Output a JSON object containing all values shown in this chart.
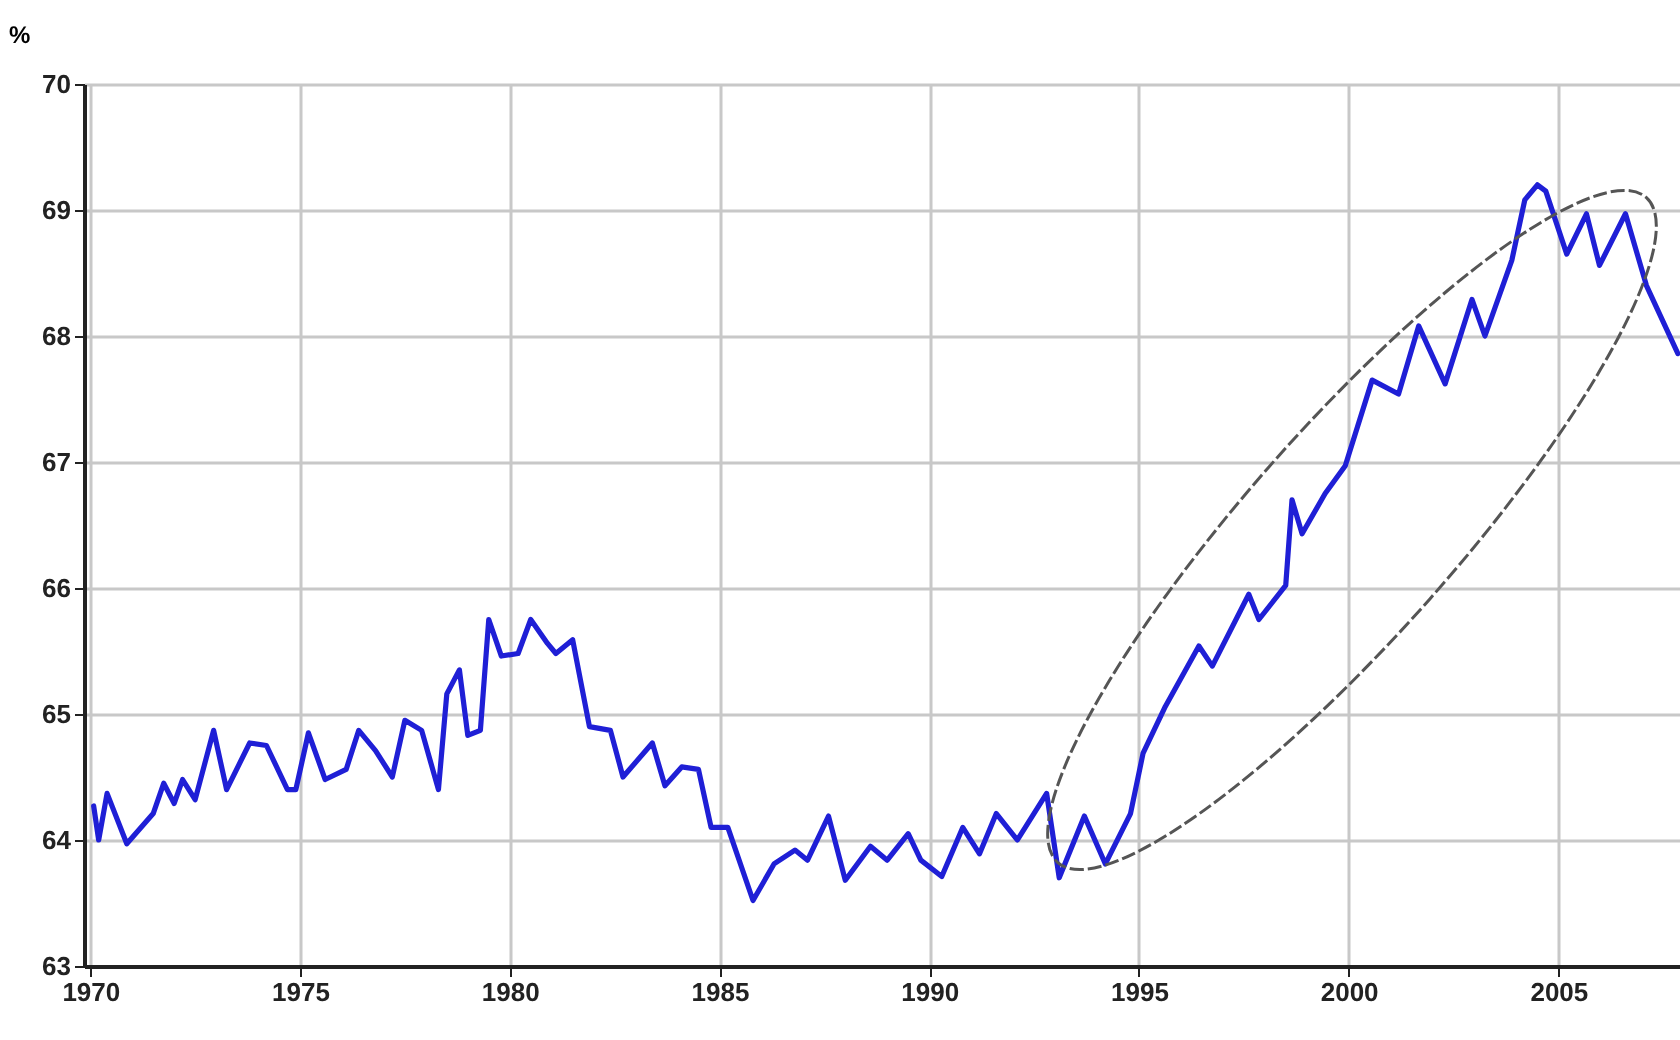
{
  "chart_data": {
    "type": "line",
    "ylabel": "%",
    "xlim": [
      1969.85,
      2007.9
    ],
    "ylim": [
      63,
      70
    ],
    "xticks": [
      1970,
      1975,
      1980,
      1985,
      1990,
      1995,
      2000,
      2005
    ],
    "yticks": [
      63,
      64,
      65,
      66,
      67,
      68,
      69,
      70
    ],
    "grid": true,
    "marker": "none",
    "line_style": "solid",
    "series": [
      {
        "color": "#1f1fd6",
        "x": [
          1970.08,
          1970.2,
          1970.4,
          1970.87,
          1971.5,
          1971.75,
          1972.0,
          1972.2,
          1972.5,
          1972.94,
          1973.25,
          1973.8,
          1974.2,
          1974.7,
          1974.9,
          1975.2,
          1975.6,
          1976.1,
          1976.4,
          1976.8,
          1977.2,
          1977.5,
          1977.9,
          1978.3,
          1978.5,
          1978.8,
          1979.0,
          1979.3,
          1979.5,
          1979.8,
          1980.2,
          1980.5,
          1980.9,
          1981.1,
          1981.5,
          1981.9,
          1982.4,
          1982.7,
          1983.4,
          1983.7,
          1984.1,
          1984.5,
          1984.8,
          1985.2,
          1985.8,
          1986.3,
          1986.8,
          1987.1,
          1987.6,
          1988.0,
          1988.6,
          1989.0,
          1989.5,
          1989.8,
          1990.3,
          1990.8,
          1991.2,
          1991.6,
          1992.1,
          1992.8,
          1993.1,
          1993.7,
          1994.2,
          1994.8,
          1995.1,
          1995.63,
          1996.43,
          1996.75,
          1997.62,
          1997.86,
          1998.5,
          1998.65,
          1998.89,
          1999.44,
          1999.92,
          2000.56,
          2001.19,
          2001.67,
          2002.3,
          2002.94,
          2003.25,
          2003.89,
          2004.2,
          2004.5,
          2004.7,
          2005.2,
          2005.67,
          2005.98,
          2006.6,
          2007.1,
          2007.85
        ],
        "values": [
          64.27,
          64.0,
          64.37,
          63.97,
          64.21,
          64.45,
          64.29,
          64.48,
          64.32,
          64.87,
          64.4,
          64.77,
          64.75,
          64.4,
          64.4,
          64.85,
          64.48,
          64.56,
          64.87,
          64.71,
          64.5,
          64.95,
          64.87,
          64.4,
          65.16,
          65.35,
          64.83,
          64.87,
          65.75,
          65.46,
          65.48,
          65.75,
          65.56,
          65.48,
          65.59,
          64.9,
          64.87,
          64.5,
          64.77,
          64.43,
          64.58,
          64.56,
          64.1,
          64.1,
          63.52,
          63.81,
          63.92,
          63.84,
          64.19,
          63.68,
          63.95,
          63.84,
          64.05,
          63.84,
          63.71,
          64.1,
          63.89,
          64.21,
          64.0,
          64.37,
          63.7,
          64.19,
          63.81,
          64.21,
          64.69,
          65.06,
          65.54,
          65.38,
          65.95,
          65.75,
          66.02,
          66.7,
          66.43,
          66.75,
          66.97,
          67.65,
          67.54,
          68.08,
          67.62,
          68.29,
          68.0,
          68.6,
          69.08,
          69.2,
          69.15,
          68.65,
          68.97,
          68.56,
          68.97,
          68.4,
          67.86
        ]
      }
    ]
  }
}
